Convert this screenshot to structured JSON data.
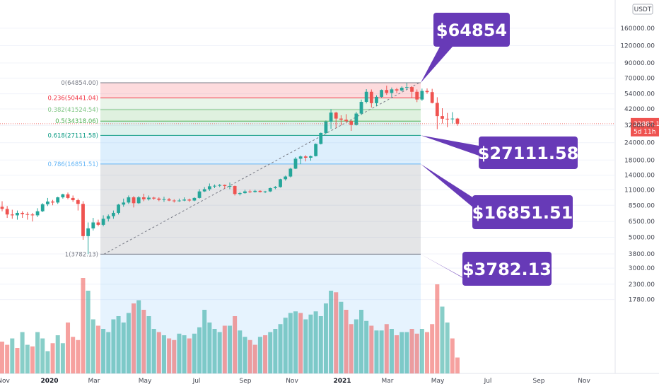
{
  "chart_data": {
    "type": "candlestick",
    "title": "",
    "currency_label": "USDT",
    "current_price": "32887.15",
    "countdown": "5d 11h",
    "y_ticks": [
      "160000.00",
      "120000.00",
      "90000.00",
      "70000.00",
      "54000.00",
      "42000.00",
      "32000.00",
      "24000.00",
      "18000.00",
      "14000.00",
      "11000.00",
      "8500.00",
      "6500.00",
      "5000.00",
      "3800.00",
      "3000.00",
      "2300.00",
      "1780.00"
    ],
    "y_scale": "log",
    "x_ticks": [
      {
        "label": "Nov",
        "bold": false
      },
      {
        "label": "2020",
        "bold": true
      },
      {
        "label": "Mar",
        "bold": false
      },
      {
        "label": "May",
        "bold": false
      },
      {
        "label": "Jul",
        "bold": false
      },
      {
        "label": "Sep",
        "bold": false
      },
      {
        "label": "Nov",
        "bold": false
      },
      {
        "label": "2021",
        "bold": true
      },
      {
        "label": "Mar",
        "bold": false
      },
      {
        "label": "May",
        "bold": false
      },
      {
        "label": "Jul",
        "bold": false
      },
      {
        "label": "Sep",
        "bold": false
      },
      {
        "label": "Nov",
        "bold": false
      }
    ],
    "fib_levels": [
      {
        "label": "0(64854.00)",
        "ratio": 0,
        "price": 64854,
        "color": "#787b86"
      },
      {
        "label": "0.236(50441.04)",
        "ratio": 0.236,
        "price": 50441.04,
        "color": "#f23645"
      },
      {
        "label": "0.382(41524.54)",
        "ratio": 0.382,
        "price": 41524.54,
        "color": "#81c784"
      },
      {
        "label": "0.5(34318.06)",
        "ratio": 0.5,
        "price": 34318.06,
        "color": "#4caf50"
      },
      {
        "label": "0.618(27111.58)",
        "ratio": 0.618,
        "price": 27111.58,
        "color": "#089981"
      },
      {
        "label": "0.786(16851.51)",
        "ratio": 0.786,
        "price": 16851.51,
        "color": "#64b5f6"
      },
      {
        "label": "1(3782.13)",
        "ratio": 1,
        "price": 3782.13,
        "color": "#787b86"
      }
    ],
    "callouts": [
      {
        "text": "$64854",
        "price": 64854
      },
      {
        "text": "$27111.58",
        "price": 27111.58
      },
      {
        "text": "$16851.51",
        "price": 16851.51
      },
      {
        "text": "$3782.13",
        "price": 3782.13
      }
    ],
    "candles": [
      [
        8300,
        9100,
        7700,
        8000
      ],
      [
        8000,
        8400,
        6900,
        7300
      ],
      [
        7300,
        7900,
        6800,
        7200
      ],
      [
        7200,
        7800,
        6700,
        7500
      ],
      [
        7500,
        7700,
        6900,
        7350
      ],
      [
        7350,
        7600,
        6700,
        7300
      ],
      [
        7300,
        7500,
        6500,
        7200
      ],
      [
        7200,
        8100,
        7000,
        7700
      ],
      [
        7700,
        8800,
        7600,
        8650
      ],
      [
        8650,
        9600,
        8400,
        9050
      ],
      [
        9050,
        9300,
        8500,
        8900
      ],
      [
        8900,
        9800,
        8700,
        9700
      ],
      [
        9700,
        10300,
        9500,
        10200
      ],
      [
        10200,
        10500,
        9400,
        9600
      ],
      [
        9600,
        10000,
        9000,
        9250
      ],
      [
        9250,
        9500,
        7800,
        8700
      ],
      [
        8700,
        9100,
        4800,
        5100
      ],
      [
        5100,
        6400,
        3782,
        5800
      ],
      [
        5800,
        6900,
        5600,
        6400
      ],
      [
        6400,
        6700,
        6000,
        6150
      ],
      [
        6150,
        7200,
        6000,
        6800
      ],
      [
        6800,
        7300,
        6500,
        7100
      ],
      [
        7100,
        7800,
        6800,
        7500
      ],
      [
        7500,
        8700,
        7300,
        8600
      ],
      [
        8600,
        9500,
        8300,
        8900
      ],
      [
        8900,
        10000,
        8700,
        9700
      ],
      [
        9700,
        9900,
        8200,
        8800
      ],
      [
        8800,
        9900,
        8700,
        9700
      ],
      [
        9700,
        10300,
        9100,
        9400
      ],
      [
        9400,
        10000,
        9200,
        9650
      ],
      [
        9650,
        9800,
        9300,
        9500
      ],
      [
        9500,
        9700,
        9100,
        9300
      ],
      [
        9300,
        9800,
        9000,
        9400
      ],
      [
        9400,
        9600,
        9100,
        9200
      ],
      [
        9200,
        9400,
        8900,
        9100
      ],
      [
        9100,
        9500,
        9000,
        9200
      ],
      [
        9200,
        9700,
        9100,
        9350
      ],
      [
        9350,
        9500,
        9000,
        9200
      ],
      [
        9200,
        9700,
        9100,
        9600
      ],
      [
        9600,
        11100,
        9500,
        10700
      ],
      [
        10700,
        11500,
        10600,
        11100
      ],
      [
        11100,
        12200,
        10800,
        11650
      ],
      [
        11650,
        12000,
        11300,
        11750
      ],
      [
        11750,
        12100,
        11500,
        11900
      ],
      [
        11900,
        12000,
        11200,
        11700
      ],
      [
        11700,
        12400,
        11100,
        11700
      ],
      [
        11700,
        11800,
        10000,
        10250
      ],
      [
        10250,
        10600,
        10000,
        10400
      ],
      [
        10400,
        11000,
        10300,
        10700
      ],
      [
        10700,
        11000,
        10400,
        10600
      ],
      [
        10600,
        11000,
        10500,
        10800
      ],
      [
        10800,
        10900,
        10500,
        10600
      ],
      [
        10600,
        10800,
        10400,
        10700
      ],
      [
        10700,
        11400,
        10600,
        11300
      ],
      [
        11300,
        11700,
        11100,
        11500
      ],
      [
        11500,
        13200,
        11400,
        13100
      ],
      [
        13100,
        13900,
        12800,
        13700
      ],
      [
        13700,
        15800,
        13500,
        15600
      ],
      [
        15600,
        18900,
        15500,
        18400
      ],
      [
        18400,
        19400,
        16800,
        19100
      ],
      [
        19100,
        19500,
        17600,
        18700
      ],
      [
        18700,
        19400,
        17800,
        19200
      ],
      [
        19200,
        23700,
        19100,
        23500
      ],
      [
        23500,
        28400,
        23300,
        28200
      ],
      [
        28200,
        34700,
        27700,
        34000
      ],
      [
        34000,
        41900,
        30200,
        39500
      ],
      [
        39500,
        40100,
        30700,
        35800
      ],
      [
        35800,
        37800,
        32000,
        35100
      ],
      [
        35100,
        38500,
        33400,
        34300
      ],
      [
        34300,
        34900,
        29200,
        32200
      ],
      [
        32200,
        40000,
        31900,
        38900
      ],
      [
        38900,
        49000,
        38000,
        47200
      ],
      [
        47200,
        58300,
        46000,
        55800
      ],
      [
        55800,
        58000,
        43000,
        46200
      ],
      [
        46200,
        52600,
        44000,
        51300
      ],
      [
        51300,
        58000,
        50400,
        57500
      ],
      [
        57500,
        61800,
        53000,
        54700
      ],
      [
        54700,
        59900,
        51000,
        58100
      ],
      [
        58100,
        59500,
        54600,
        57000
      ],
      [
        57000,
        61000,
        56200,
        59700
      ],
      [
        59700,
        64854,
        57500,
        60300
      ],
      [
        60300,
        61200,
        50500,
        55800
      ],
      [
        55800,
        58000,
        47000,
        49100
      ],
      [
        49100,
        58800,
        48000,
        56600
      ],
      [
        56600,
        59000,
        54000,
        55500
      ],
      [
        55500,
        58600,
        46000,
        46400
      ],
      [
        46400,
        51000,
        30000,
        37300
      ],
      [
        37300,
        42500,
        33000,
        35700
      ],
      [
        35700,
        39300,
        31000,
        35500
      ],
      [
        35500,
        39800,
        33000,
        35800
      ],
      [
        35800,
        36200,
        31800,
        32887
      ]
    ],
    "volumes": [
      [
        1.0,
        0
      ],
      [
        0.9,
        0
      ],
      [
        1.1,
        1
      ],
      [
        0.8,
        0
      ],
      [
        1.3,
        1
      ],
      [
        0.9,
        1
      ],
      [
        0.85,
        0
      ],
      [
        1.3,
        1
      ],
      [
        1.1,
        1
      ],
      [
        0.7,
        1
      ],
      [
        0.95,
        0
      ],
      [
        1.2,
        1
      ],
      [
        0.95,
        1
      ],
      [
        1.6,
        0
      ],
      [
        1.15,
        0
      ],
      [
        1.05,
        0
      ],
      [
        3.0,
        0
      ],
      [
        2.6,
        1
      ],
      [
        1.7,
        1
      ],
      [
        1.5,
        0
      ],
      [
        1.4,
        1
      ],
      [
        1.3,
        1
      ],
      [
        1.7,
        1
      ],
      [
        1.8,
        1
      ],
      [
        1.6,
        1
      ],
      [
        1.9,
        1
      ],
      [
        2.2,
        0
      ],
      [
        2.3,
        1
      ],
      [
        2.0,
        0
      ],
      [
        1.8,
        1
      ],
      [
        1.4,
        1
      ],
      [
        1.3,
        0
      ],
      [
        1.2,
        1
      ],
      [
        1.1,
        0
      ],
      [
        1.05,
        0
      ],
      [
        1.25,
        1
      ],
      [
        1.2,
        1
      ],
      [
        1.1,
        0
      ],
      [
        1.25,
        1
      ],
      [
        1.45,
        1
      ],
      [
        2.0,
        1
      ],
      [
        1.6,
        1
      ],
      [
        1.4,
        1
      ],
      [
        1.3,
        1
      ],
      [
        1.5,
        0
      ],
      [
        1.5,
        1
      ],
      [
        1.8,
        0
      ],
      [
        1.35,
        1
      ],
      [
        1.15,
        1
      ],
      [
        1.05,
        0
      ],
      [
        0.9,
        0
      ],
      [
        1.15,
        1
      ],
      [
        1.2,
        0
      ],
      [
        1.3,
        1
      ],
      [
        1.4,
        1
      ],
      [
        1.55,
        1
      ],
      [
        1.75,
        1
      ],
      [
        1.9,
        1
      ],
      [
        1.95,
        1
      ],
      [
        1.9,
        0
      ],
      [
        1.7,
        1
      ],
      [
        1.85,
        1
      ],
      [
        1.95,
        1
      ],
      [
        1.8,
        1
      ],
      [
        2.2,
        1
      ],
      [
        2.6,
        1
      ],
      [
        2.55,
        0
      ],
      [
        2.25,
        1
      ],
      [
        2.0,
        0
      ],
      [
        1.55,
        0
      ],
      [
        1.7,
        1
      ],
      [
        2.0,
        1
      ],
      [
        1.65,
        1
      ],
      [
        1.5,
        0
      ],
      [
        1.35,
        1
      ],
      [
        1.35,
        1
      ],
      [
        1.55,
        0
      ],
      [
        1.4,
        1
      ],
      [
        1.2,
        0
      ],
      [
        1.3,
        1
      ],
      [
        1.3,
        1
      ],
      [
        1.4,
        0
      ],
      [
        1.25,
        0
      ],
      [
        1.4,
        1
      ],
      [
        1.3,
        0
      ],
      [
        1.55,
        0
      ],
      [
        2.8,
        0
      ],
      [
        2.1,
        1
      ],
      [
        1.6,
        1
      ],
      [
        1.1,
        0
      ],
      [
        0.5,
        0
      ]
    ]
  }
}
